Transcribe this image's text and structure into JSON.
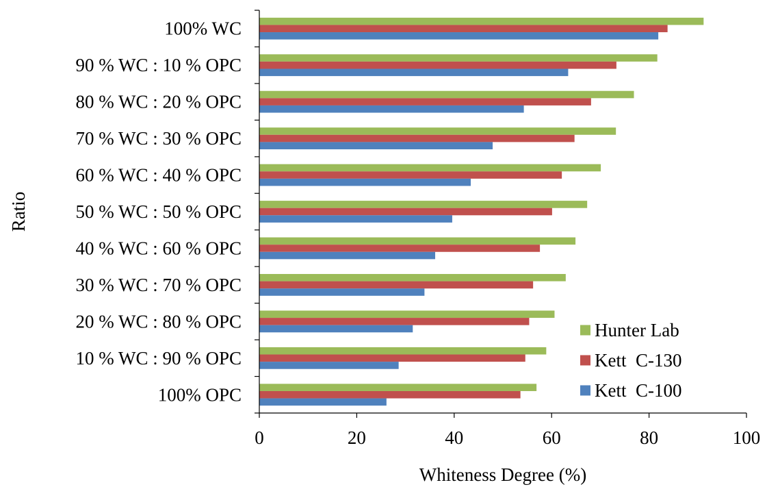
{
  "chart_data": {
    "type": "bar",
    "orientation": "horizontal",
    "categories": [
      "100% WC",
      "90 % WC : 10 % OPC",
      "80 % WC : 20 % OPC",
      "70 % WC : 30 % OPC",
      "60 % WC : 40 % OPC",
      "50 % WC : 50 % OPC",
      "40 % WC : 60 % OPC",
      "30 % WC : 70 % OPC",
      "20 % WC : 80 % OPC",
      "10 % WC : 90 % OPC",
      "100% OPC"
    ],
    "series": [
      {
        "name": "Hunter Lab",
        "color": "#9BBB59",
        "values": [
          91.2,
          81.7,
          76.9,
          73.2,
          70.1,
          67.3,
          64.9,
          62.9,
          60.6,
          58.9,
          56.9
        ]
      },
      {
        "name": "Kett  C-130",
        "color": "#C0504D",
        "values": [
          83.8,
          73.3,
          68.1,
          64.7,
          62.1,
          60.1,
          57.6,
          56.2,
          55.4,
          54.6,
          53.6
        ]
      },
      {
        "name": "Kett  C-100",
        "color": "#4F81BD",
        "values": [
          81.9,
          63.4,
          54.3,
          47.9,
          43.4,
          39.6,
          36.1,
          33.9,
          31.5,
          28.6,
          26.1
        ]
      }
    ],
    "xlabel": "Whiteness Degree (%)",
    "ylabel": "Ratio",
    "xlim": [
      0,
      100
    ],
    "xticks": [
      0,
      20,
      40,
      60,
      80,
      100
    ],
    "grid": false,
    "legend_position": "bottom-right"
  }
}
